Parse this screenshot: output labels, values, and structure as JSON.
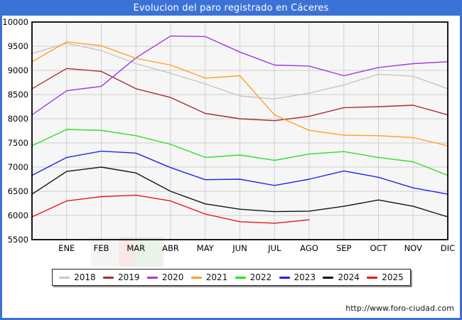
{
  "window": {
    "title": "Evolucion del paro registrado en Cáceres",
    "footer_url": "http://www.foro-ciudad.com",
    "frame_color": "#3b72d6"
  },
  "chart_data": {
    "type": "line",
    "title": "Evolucion del paro registrado en Cáceres",
    "x_categories": [
      "ENE",
      "FEB",
      "MAR",
      "ABR",
      "MAY",
      "JUN",
      "JUL",
      "AGO",
      "SEP",
      "OCT",
      "NOV",
      "DIC"
    ],
    "y_axis": {
      "min": 5500,
      "max": 10000,
      "tick_step": 500,
      "tick_labels": [
        "10000",
        "9500",
        "9000",
        "8500",
        "8000",
        "7500",
        "7000",
        "6500",
        "6000",
        "5500"
      ]
    },
    "grid": true,
    "legend_position": "bottom",
    "note": "Each line starts at the left axis with the previous December value (prev_dec), then ENE..DIC at the gridlines. 2025 runs only to AGO.",
    "series": [
      {
        "name": "2018",
        "color": "#c6c6c6",
        "prev_dec": 9350,
        "values": [
          9560,
          9410,
          9140,
          8940,
          8720,
          8470,
          8410,
          8530,
          8700,
          8920,
          8880,
          8620
        ]
      },
      {
        "name": "2019",
        "color": "#a52f2f",
        "prev_dec": 8620,
        "values": [
          9040,
          8980,
          8620,
          8440,
          8110,
          8000,
          7960,
          8050,
          8230,
          8250,
          8280,
          8080
        ]
      },
      {
        "name": "2020",
        "color": "#a03ae2",
        "prev_dec": 8080,
        "values": [
          8580,
          8670,
          9260,
          9710,
          9700,
          9380,
          9110,
          9090,
          8890,
          9060,
          9140,
          9180
        ]
      },
      {
        "name": "2021",
        "color": "#ffa11e",
        "prev_dec": 9180,
        "values": [
          9590,
          9510,
          9250,
          9110,
          8840,
          8890,
          8080,
          7760,
          7660,
          7650,
          7610,
          7440
        ]
      },
      {
        "name": "2022",
        "color": "#2bdf2b",
        "prev_dec": 7440,
        "values": [
          7780,
          7760,
          7650,
          7470,
          7200,
          7250,
          7140,
          7270,
          7320,
          7200,
          7110,
          6830
        ]
      },
      {
        "name": "2023",
        "color": "#2121ee",
        "prev_dec": 6830,
        "values": [
          7200,
          7330,
          7290,
          6990,
          6740,
          6750,
          6620,
          6750,
          6920,
          6790,
          6570,
          6440
        ]
      },
      {
        "name": "2024",
        "color": "#131313",
        "prev_dec": 6440,
        "values": [
          6910,
          7000,
          6880,
          6500,
          6240,
          6130,
          6080,
          6090,
          6190,
          6320,
          6190,
          5970
        ]
      },
      {
        "name": "2025",
        "color": "#ee1414",
        "prev_dec": 5970,
        "values": [
          6300,
          6390,
          6420,
          6300,
          6030,
          5870,
          5840,
          5910
        ]
      }
    ],
    "watermark": {
      "desc": "faint flag watermark behind FEB-ABR axis labels",
      "bands": [
        "#ececec",
        "#f2d6d6",
        "#d9e9d6"
      ]
    }
  }
}
